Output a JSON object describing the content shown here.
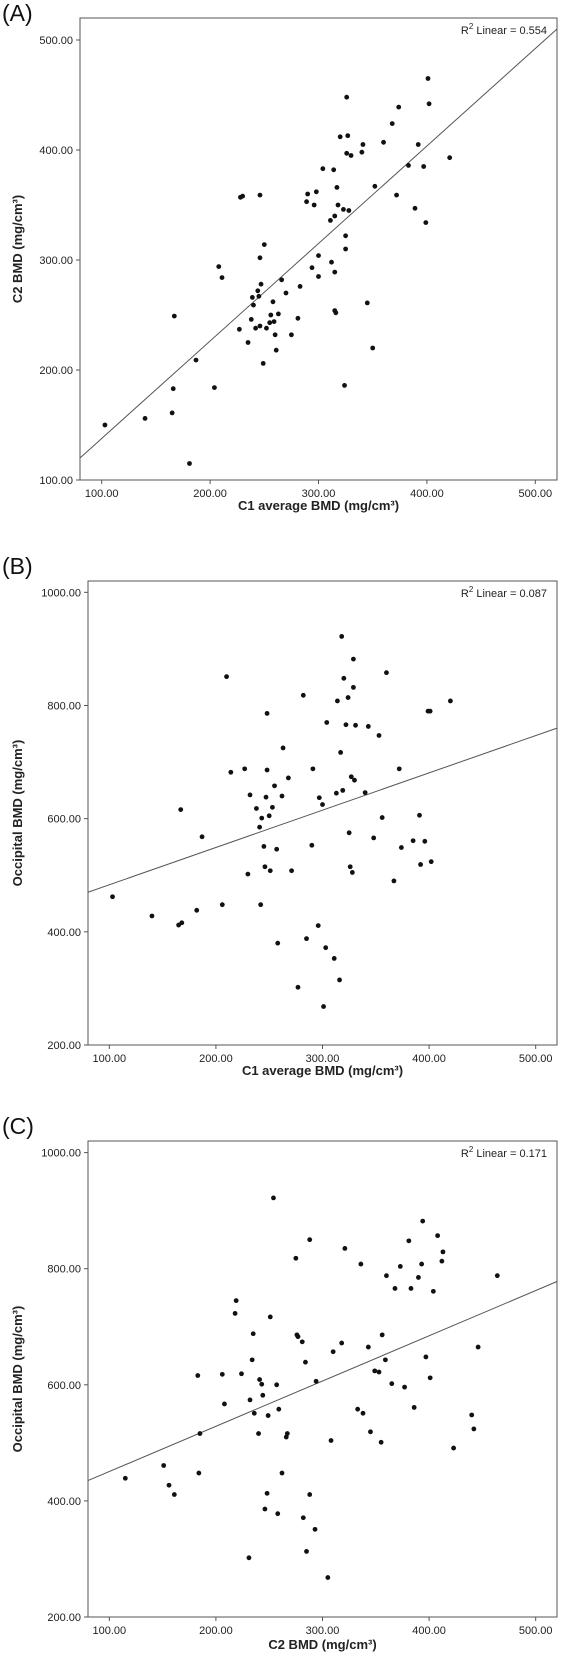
{
  "chart_data": [
    {
      "panel_label": "(A)",
      "type": "scatter",
      "xlabel": "C1 average BMD (mg/cm³)",
      "ylabel": "C2 BMD (mg/cm³)",
      "xlim": [
        80,
        520
      ],
      "ylim": [
        100,
        520
      ],
      "xticks": [
        100,
        200,
        300,
        400,
        500
      ],
      "yticks": [
        100,
        200,
        300,
        400,
        500
      ],
      "xtick_labels": [
        "100.00",
        "200.00",
        "300.00",
        "400.00",
        "500.00"
      ],
      "ytick_labels": [
        "100.00",
        "200.00",
        "300.00",
        "400.00",
        "500.00"
      ],
      "r2_label": "Linear = 0.554",
      "r2_prefix": "R",
      "r2_sup": "2",
      "fit_line": {
        "x": [
          80,
          520
        ],
        "y": [
          120,
          510
        ]
      },
      "points": [
        [
          103,
          150
        ],
        [
          140,
          156
        ],
        [
          165,
          161
        ],
        [
          166,
          183
        ],
        [
          167,
          249
        ],
        [
          181,
          115
        ],
        [
          187,
          209
        ],
        [
          204,
          184
        ],
        [
          208,
          294
        ],
        [
          211,
          284
        ],
        [
          227,
          237
        ],
        [
          228,
          357
        ],
        [
          230,
          358
        ],
        [
          235,
          225
        ],
        [
          238,
          246
        ],
        [
          239,
          266
        ],
        [
          240,
          259
        ],
        [
          242,
          238
        ],
        [
          244,
          272
        ],
        [
          245,
          267
        ],
        [
          246,
          240
        ],
        [
          246,
          302
        ],
        [
          246,
          359
        ],
        [
          247,
          278
        ],
        [
          249,
          206
        ],
        [
          250,
          314
        ],
        [
          252,
          238
        ],
        [
          255,
          243
        ],
        [
          256,
          250
        ],
        [
          258,
          262
        ],
        [
          259,
          244
        ],
        [
          260,
          232
        ],
        [
          261,
          218
        ],
        [
          263,
          251
        ],
        [
          266,
          282
        ],
        [
          270,
          270
        ],
        [
          275,
          232
        ],
        [
          281,
          247
        ],
        [
          283,
          276
        ],
        [
          289,
          353
        ],
        [
          290,
          360
        ],
        [
          294,
          293
        ],
        [
          296,
          350
        ],
        [
          298,
          362
        ],
        [
          300,
          285
        ],
        [
          300,
          304
        ],
        [
          304,
          383
        ],
        [
          311,
          336
        ],
        [
          312,
          298
        ],
        [
          314,
          382
        ],
        [
          315,
          289
        ],
        [
          315,
          340
        ],
        [
          315,
          254
        ],
        [
          316,
          252
        ],
        [
          317,
          366
        ],
        [
          318,
          350
        ],
        [
          320,
          412
        ],
        [
          323,
          346
        ],
        [
          324,
          186
        ],
        [
          325,
          322
        ],
        [
          325,
          310
        ],
        [
          326,
          397
        ],
        [
          326,
          448
        ],
        [
          327,
          413
        ],
        [
          328,
          345
        ],
        [
          330,
          395
        ],
        [
          340,
          398
        ],
        [
          341,
          405
        ],
        [
          345,
          261
        ],
        [
          350,
          220
        ],
        [
          352,
          367
        ],
        [
          360,
          407
        ],
        [
          368,
          424
        ],
        [
          372,
          359
        ],
        [
          374,
          439
        ],
        [
          383,
          386
        ],
        [
          389,
          347
        ],
        [
          392,
          405
        ],
        [
          397,
          385
        ],
        [
          399,
          334
        ],
        [
          401,
          465
        ],
        [
          402,
          442
        ],
        [
          421,
          393
        ]
      ]
    },
    {
      "panel_label": "(B)",
      "type": "scatter",
      "xlabel": "C1 average BMD (mg/cm³)",
      "ylabel": "Occipital BMD (mg/cm³)",
      "xlim": [
        80,
        520
      ],
      "ylim": [
        200,
        1020
      ],
      "xticks": [
        100,
        200,
        300,
        400,
        500
      ],
      "yticks": [
        200,
        400,
        600,
        800,
        1000
      ],
      "xtick_labels": [
        "100.00",
        "200.00",
        "300.00",
        "400.00",
        "500.00"
      ],
      "ytick_labels": [
        "200.00",
        "400.00",
        "600.00",
        "800.00",
        "1000.00"
      ],
      "r2_label": "Linear = 0.087",
      "r2_prefix": "R",
      "r2_sup": "2",
      "fit_line": {
        "x": [
          80,
          520
        ],
        "y": [
          470,
          760
        ]
      },
      "points": [
        [
          103,
          462
        ],
        [
          140,
          428
        ],
        [
          165,
          412
        ],
        [
          167,
          616
        ],
        [
          168,
          416
        ],
        [
          182,
          438
        ],
        [
          187,
          568
        ],
        [
          206,
          448
        ],
        [
          210,
          851
        ],
        [
          214,
          682
        ],
        [
          227,
          688
        ],
        [
          230,
          502
        ],
        [
          232,
          642
        ],
        [
          238,
          618
        ],
        [
          241,
          585
        ],
        [
          242,
          448
        ],
        [
          243,
          601
        ],
        [
          245,
          551
        ],
        [
          246,
          515
        ],
        [
          247,
          638
        ],
        [
          248,
          686
        ],
        [
          248,
          786
        ],
        [
          250,
          605
        ],
        [
          251,
          508
        ],
        [
          253,
          620
        ],
        [
          255,
          658
        ],
        [
          257,
          546
        ],
        [
          258,
          380
        ],
        [
          262,
          640
        ],
        [
          263,
          725
        ],
        [
          268,
          672
        ],
        [
          271,
          508
        ],
        [
          277,
          302
        ],
        [
          282,
          818
        ],
        [
          285,
          388
        ],
        [
          290,
          553
        ],
        [
          291,
          688
        ],
        [
          296,
          411
        ],
        [
          297,
          637
        ],
        [
          300,
          625
        ],
        [
          301,
          268
        ],
        [
          303,
          372
        ],
        [
          304,
          770
        ],
        [
          311,
          353
        ],
        [
          313,
          645
        ],
        [
          314,
          808
        ],
        [
          316,
          315
        ],
        [
          317,
          717
        ],
        [
          318,
          922
        ],
        [
          319,
          650
        ],
        [
          320,
          848
        ],
        [
          322,
          766
        ],
        [
          324,
          814
        ],
        [
          325,
          575
        ],
        [
          326,
          515
        ],
        [
          327,
          674
        ],
        [
          328,
          505
        ],
        [
          329,
          832
        ],
        [
          329,
          882
        ],
        [
          330,
          668
        ],
        [
          331,
          765
        ],
        [
          340,
          646
        ],
        [
          343,
          763
        ],
        [
          348,
          566
        ],
        [
          353,
          747
        ],
        [
          356,
          602
        ],
        [
          360,
          858
        ],
        [
          367,
          490
        ],
        [
          372,
          688
        ],
        [
          374,
          549
        ],
        [
          385,
          561
        ],
        [
          391,
          606
        ],
        [
          392,
          519
        ],
        [
          396,
          560
        ],
        [
          399,
          790
        ],
        [
          401,
          790
        ],
        [
          402,
          524
        ],
        [
          420,
          808
        ]
      ]
    },
    {
      "panel_label": "(C)",
      "type": "scatter",
      "xlabel": "C2 BMD (mg/cm³)",
      "ylabel": "Occipital BMD (mg/cm³)",
      "xlim": [
        80,
        520
      ],
      "ylim": [
        200,
        1020
      ],
      "xticks": [
        100,
        200,
        300,
        400,
        500
      ],
      "yticks": [
        200,
        400,
        600,
        800,
        1000
      ],
      "xtick_labels": [
        "100.00",
        "200.00",
        "300.00",
        "400.00",
        "500.00"
      ],
      "ytick_labels": [
        "200.00",
        "400.00",
        "600.00",
        "800.00",
        "1000.00"
      ],
      "r2_label": "Linear = 0.171",
      "r2_prefix": "R",
      "r2_sup": "2",
      "fit_line": {
        "x": [
          80,
          520
        ],
        "y": [
          435,
          778
        ]
      },
      "points": [
        [
          115,
          439
        ],
        [
          151,
          461
        ],
        [
          156,
          427
        ],
        [
          161,
          411
        ],
        [
          183,
          616
        ],
        [
          184,
          448
        ],
        [
          185,
          516
        ],
        [
          206,
          618
        ],
        [
          208,
          567
        ],
        [
          218,
          723
        ],
        [
          219,
          745
        ],
        [
          224,
          619
        ],
        [
          231,
          302
        ],
        [
          232,
          574
        ],
        [
          234,
          643
        ],
        [
          235,
          688
        ],
        [
          236,
          551
        ],
        [
          240,
          516
        ],
        [
          241,
          609
        ],
        [
          243,
          601
        ],
        [
          244,
          582
        ],
        [
          246,
          386
        ],
        [
          248,
          413
        ],
        [
          249,
          547
        ],
        [
          251,
          717
        ],
        [
          254,
          922
        ],
        [
          257,
          600
        ],
        [
          258,
          378
        ],
        [
          259,
          558
        ],
        [
          262,
          448
        ],
        [
          266,
          510
        ],
        [
          267,
          516
        ],
        [
          275,
          818
        ],
        [
          276,
          686
        ],
        [
          277,
          683
        ],
        [
          281,
          674
        ],
        [
          282,
          371
        ],
        [
          284,
          639
        ],
        [
          285,
          313
        ],
        [
          288,
          411
        ],
        [
          288,
          850
        ],
        [
          293,
          351
        ],
        [
          294,
          606
        ],
        [
          305,
          268
        ],
        [
          308,
          504
        ],
        [
          310,
          657
        ],
        [
          318,
          672
        ],
        [
          321,
          835
        ],
        [
          333,
          558
        ],
        [
          336,
          808
        ],
        [
          338,
          551
        ],
        [
          343,
          665
        ],
        [
          345,
          519
        ],
        [
          349,
          624
        ],
        [
          353,
          622
        ],
        [
          355,
          501
        ],
        [
          356,
          686
        ],
        [
          359,
          643
        ],
        [
          360,
          788
        ],
        [
          365,
          602
        ],
        [
          368,
          766
        ],
        [
          373,
          804
        ],
        [
          377,
          596
        ],
        [
          381,
          848
        ],
        [
          383,
          766
        ],
        [
          386,
          561
        ],
        [
          390,
          785
        ],
        [
          393,
          808
        ],
        [
          394,
          882
        ],
        [
          397,
          648
        ],
        [
          401,
          612
        ],
        [
          404,
          761
        ],
        [
          408,
          857
        ],
        [
          412,
          813
        ],
        [
          413,
          829
        ],
        [
          423,
          491
        ],
        [
          440,
          548
        ],
        [
          442,
          524
        ],
        [
          446,
          665
        ],
        [
          464,
          788
        ]
      ]
    }
  ]
}
